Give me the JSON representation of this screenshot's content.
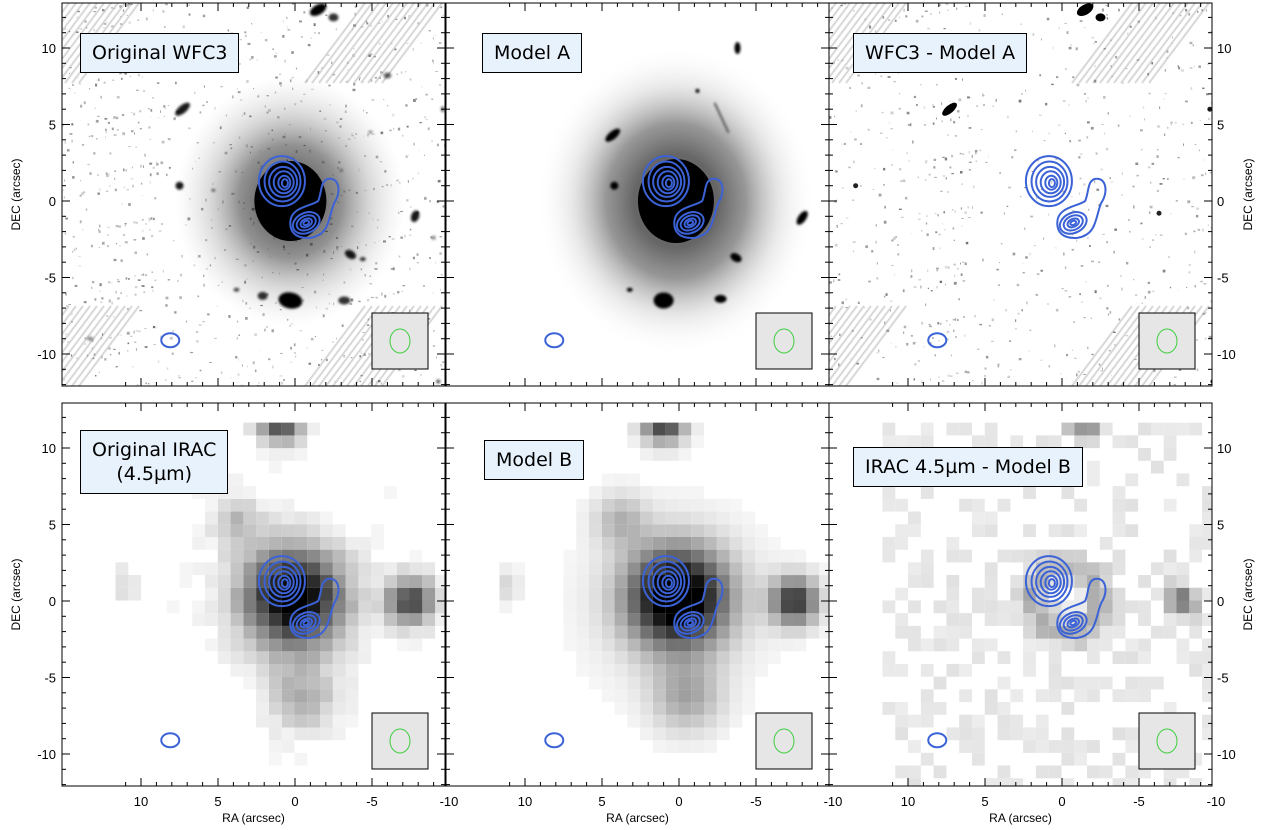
{
  "panels": [
    {
      "label": "Original WFC3",
      "row": 0,
      "col": 0,
      "kind": "wfc3"
    },
    {
      "label": "Model A",
      "row": 0,
      "col": 1,
      "kind": "modelA"
    },
    {
      "label": "WFC3 - Model A",
      "row": 0,
      "col": 2,
      "kind": "residA"
    },
    {
      "label": "Original IRAC\n(4.5µm)",
      "row": 1,
      "col": 0,
      "kind": "irac"
    },
    {
      "label": "Model B",
      "row": 1,
      "col": 1,
      "kind": "modelB"
    },
    {
      "label": "IRAC 4.5µm - Model B",
      "row": 1,
      "col": 2,
      "kind": "residB"
    }
  ],
  "axes": {
    "xlabel": "RA (arcsec)",
    "ylabel": "DEC (arcsec)",
    "x_ticks": [
      "10",
      "5",
      "0",
      "-5",
      "-10"
    ],
    "y_ticks": [
      "10",
      "5",
      "0",
      "-5",
      "-10"
    ]
  },
  "colors": {
    "contour": "#3b62d6",
    "psf_ellipse": "#3fcf3f",
    "psf_box": "#e6e6e6",
    "background": "#ffffff"
  }
}
